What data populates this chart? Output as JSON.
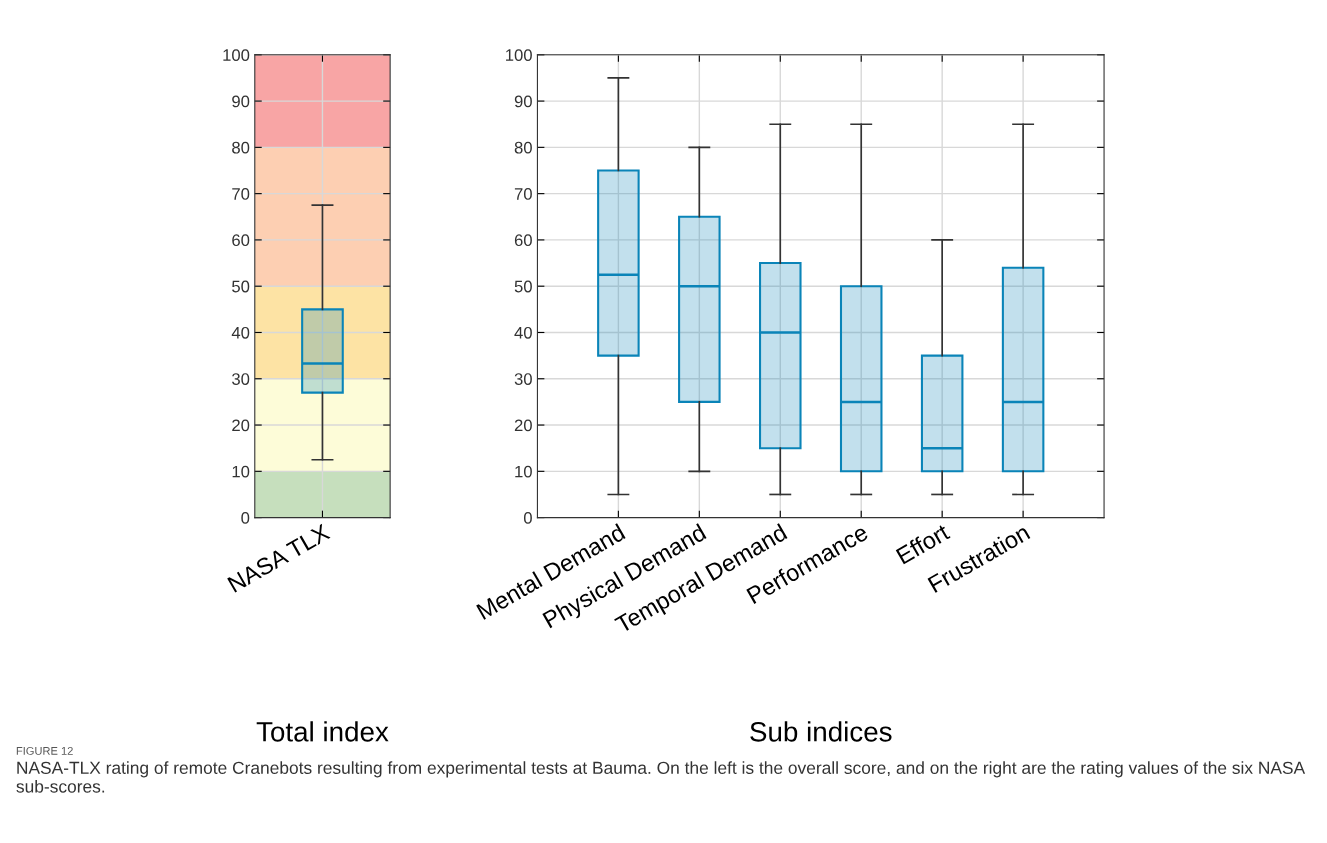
{
  "chart_data": [
    {
      "type": "box",
      "categories": [
        "NASA TLX"
      ],
      "xlabel": "Total index",
      "ylim": [
        0,
        100
      ],
      "yticks": [
        0,
        10,
        20,
        30,
        40,
        50,
        60,
        70,
        80,
        90,
        100
      ],
      "grid": true,
      "series": [
        {
          "color": "#0a84b8",
          "boxes": [
            {
              "low": 12.5,
              "q1": 27,
              "median": 33.3,
              "q3": 45,
              "high": 67.5
            }
          ]
        }
      ],
      "bands": [
        {
          "axis": "y",
          "from": 0,
          "to": 10,
          "color": "#c6dfbd"
        },
        {
          "axis": "y",
          "from": 10,
          "to": 30,
          "color": "#fdfcd8"
        },
        {
          "axis": "y",
          "from": 30,
          "to": 50,
          "color": "#fde3a4"
        },
        {
          "axis": "y",
          "from": 50,
          "to": 80,
          "color": "#fdcfb2"
        },
        {
          "axis": "y",
          "from": 80,
          "to": 100,
          "color": "#f8a5a5"
        }
      ]
    },
    {
      "type": "box",
      "categories": [
        "Mental Demand",
        "Physical Demand",
        "Temporal Demand",
        "Performance",
        "Effort",
        "Frustration"
      ],
      "xlabel": "Sub indices",
      "ylim": [
        0,
        100
      ],
      "yticks": [
        0,
        10,
        20,
        30,
        40,
        50,
        60,
        70,
        80,
        90,
        100
      ],
      "grid": true,
      "series": [
        {
          "color": "#0a84b8",
          "boxes": [
            {
              "low": 5,
              "q1": 35,
              "median": 52.5,
              "q3": 75,
              "high": 95
            },
            {
              "low": 10,
              "q1": 25,
              "median": 50,
              "q3": 65,
              "high": 80
            },
            {
              "low": 5,
              "q1": 15,
              "median": 40,
              "q3": 55,
              "high": 85
            },
            {
              "low": 5,
              "q1": 10,
              "median": 25,
              "q3": 50,
              "high": 85
            },
            {
              "low": 5,
              "q1": 10,
              "median": 15,
              "q3": 35,
              "high": 60
            },
            {
              "low": 5,
              "q1": 10,
              "median": 25,
              "q3": 54,
              "high": 85
            }
          ]
        }
      ],
      "annotations": [
        "FIGURE 12",
        "NASA-TLX rating of remote Cranebots resulting from experimental tests at Bauma. On the left is the overall score, and on the right are the rating values of the six NASA sub-scores."
      ]
    }
  ]
}
